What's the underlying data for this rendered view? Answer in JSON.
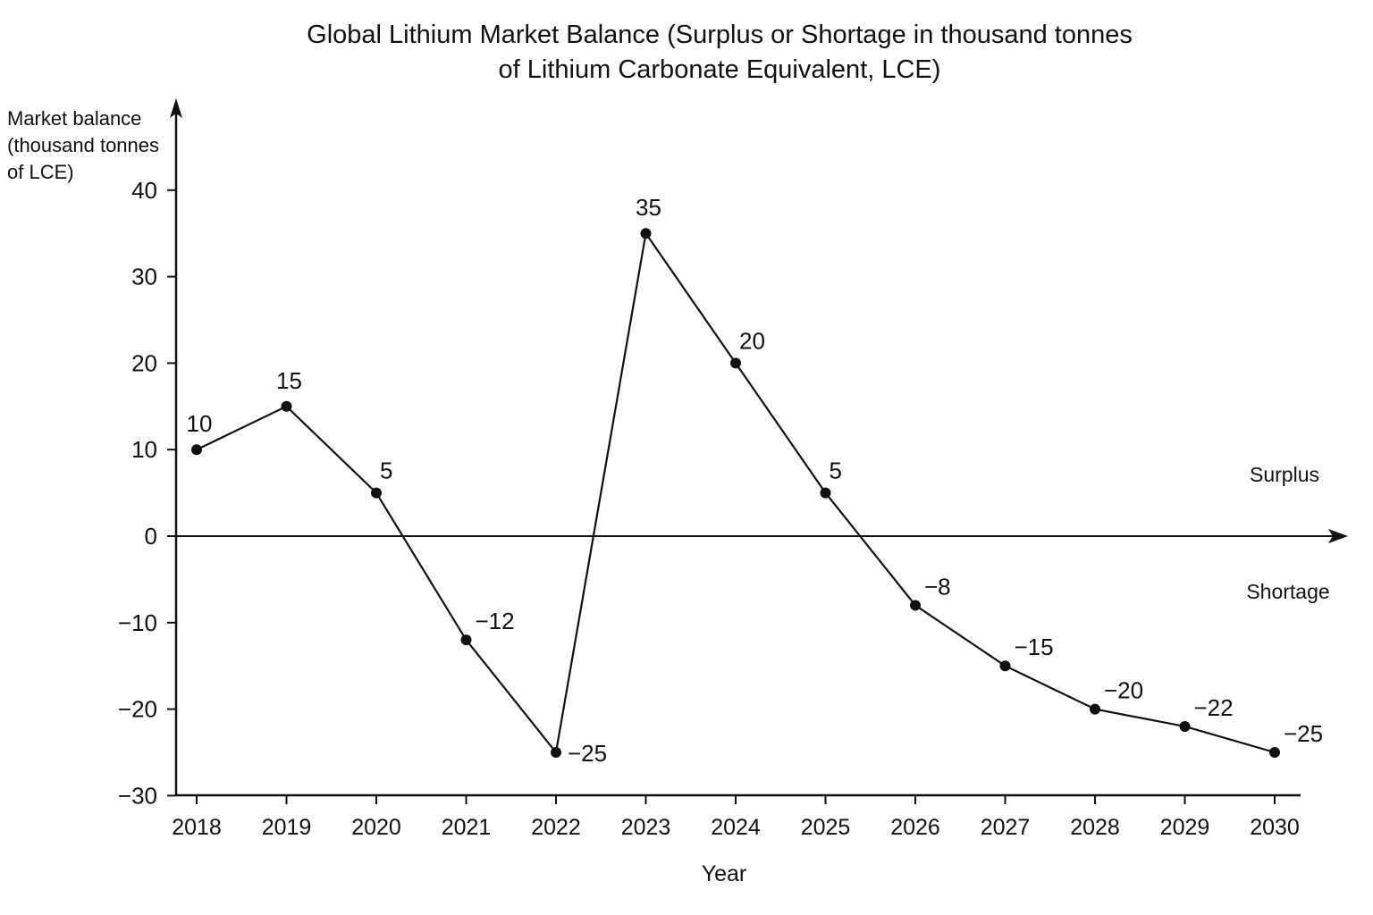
{
  "chart_data": {
    "type": "line",
    "title_lines": [
      "Global Lithium Market Balance (Surplus or Shortage in thousand tonnes",
      "of Lithium Carbonate Equivalent, LCE)"
    ],
    "ylabel_lines": [
      "Market balance",
      "(thousand tonnes",
      "of LCE)"
    ],
    "xlabel": "Year",
    "x": [
      "2018",
      "2019",
      "2020",
      "2021",
      "2022",
      "2023",
      "2024",
      "2025",
      "2026",
      "2027",
      "2028",
      "2029",
      "2030"
    ],
    "values": [
      10,
      15,
      5,
      -12,
      -25,
      35,
      20,
      5,
      -8,
      -15,
      -20,
      -22,
      -25
    ],
    "data_labels": [
      "10",
      "15",
      "5",
      "−12",
      "−25",
      "35",
      "20",
      "5",
      "−8",
      "−15",
      "−20",
      "−22",
      "−25"
    ],
    "y_ticks": [
      40,
      30,
      20,
      10,
      0,
      -10,
      -20,
      -30
    ],
    "y_tick_labels": [
      "40",
      "30",
      "20",
      "10",
      "0",
      "−10",
      "−20",
      "−30"
    ],
    "ylim": [
      -30,
      40
    ],
    "annotations": {
      "surplus": "Surplus",
      "shortage": "Shortage"
    },
    "grid": false,
    "legend": "none",
    "line_color": "#111111",
    "marker_color": "#111111"
  }
}
